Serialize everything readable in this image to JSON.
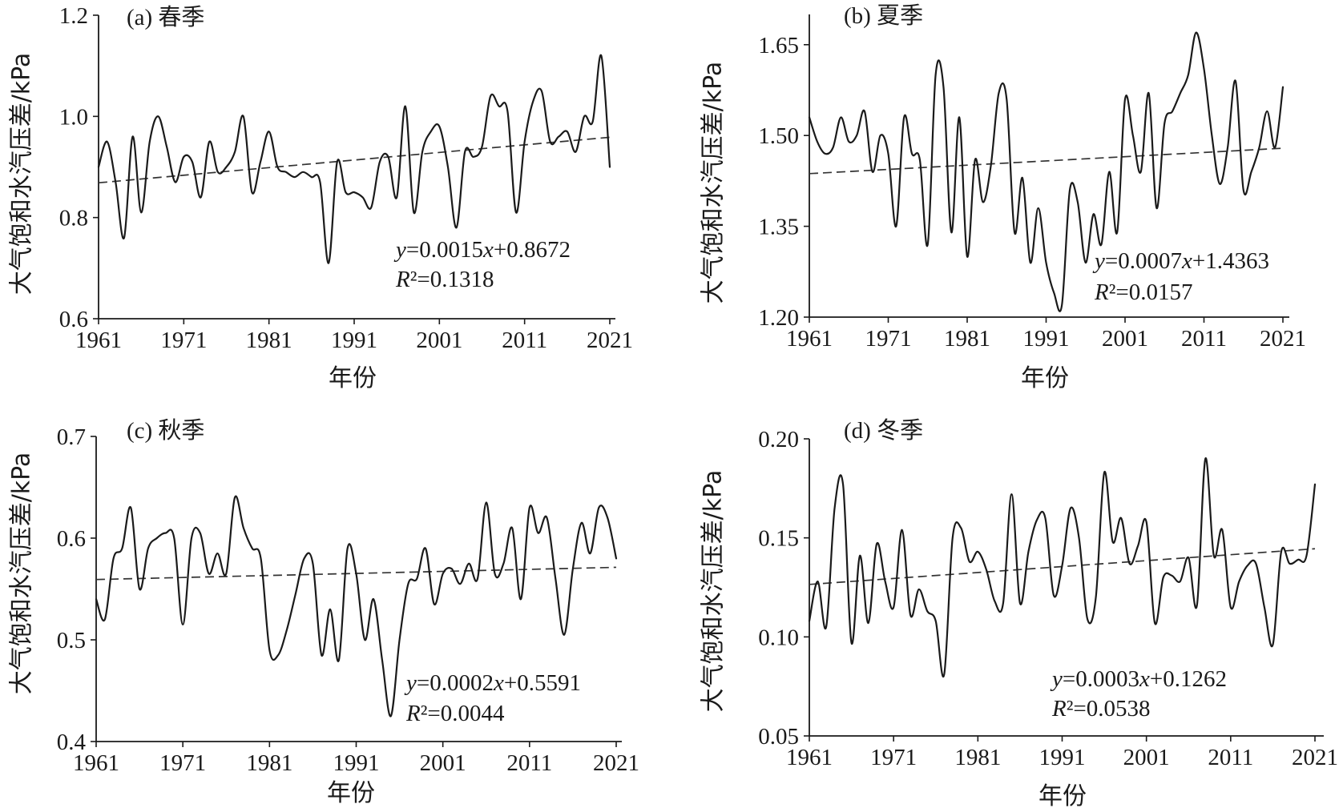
{
  "colors": {
    "background": "#ffffff",
    "line": "#1a1a1a",
    "trend": "#333333",
    "axis": "#1a1a1a",
    "text": "#1a1a1a"
  },
  "chart_data": [
    {
      "type": "line",
      "title": "(a) 春季",
      "xlabel": "年份",
      "ylabel": "大气饱和水汽压差/kPa",
      "xlim": [
        1961,
        2021
      ],
      "ylim": [
        0.6,
        1.2
      ],
      "xticks": [
        "1961",
        "1971",
        "1981",
        "1991",
        "2001",
        "2011",
        "2021"
      ],
      "yticks": [
        "0.6",
        "0.8",
        "1.0",
        "1.2"
      ],
      "x": [
        1961,
        1962,
        1963,
        1964,
        1965,
        1966,
        1967,
        1968,
        1969,
        1970,
        1971,
        1972,
        1973,
        1974,
        1975,
        1976,
        1977,
        1978,
        1979,
        1980,
        1981,
        1982,
        1983,
        1984,
        1985,
        1986,
        1987,
        1988,
        1989,
        1990,
        1991,
        1992,
        1993,
        1994,
        1995,
        1996,
        1997,
        1998,
        1999,
        2000,
        2001,
        2002,
        2003,
        2004,
        2005,
        2006,
        2007,
        2008,
        2009,
        2010,
        2011,
        2012,
        2013,
        2014,
        2015,
        2016,
        2017,
        2018,
        2019,
        2020,
        2021
      ],
      "y": [
        0.9,
        0.95,
        0.87,
        0.76,
        0.96,
        0.81,
        0.95,
        1.0,
        0.94,
        0.87,
        0.92,
        0.91,
        0.84,
        0.95,
        0.89,
        0.9,
        0.93,
        1.0,
        0.85,
        0.91,
        0.97,
        0.9,
        0.89,
        0.88,
        0.89,
        0.88,
        0.87,
        0.71,
        0.91,
        0.85,
        0.85,
        0.84,
        0.82,
        0.91,
        0.92,
        0.84,
        1.02,
        0.81,
        0.93,
        0.97,
        0.98,
        0.9,
        0.78,
        0.93,
        0.92,
        0.94,
        1.04,
        1.02,
        1.01,
        0.81,
        0.95,
        1.03,
        1.05,
        0.95,
        0.96,
        0.97,
        0.93,
        1.0,
        0.99,
        1.12,
        0.9
      ],
      "trend": {
        "slope": 0.0015,
        "intercept": 0.8672,
        "equation": "y=0.0015x+0.8672",
        "r2": "R²=0.1318"
      }
    },
    {
      "type": "line",
      "title": "(b) 夏季",
      "xlabel": "年份",
      "ylabel": "大气饱和水汽压差/kPa",
      "xlim": [
        1961,
        2021
      ],
      "ylim": [
        1.2,
        1.7
      ],
      "xticks": [
        "1961",
        "1971",
        "1981",
        "1991",
        "2001",
        "2011",
        "2021"
      ],
      "yticks": [
        "1.20",
        "1.35",
        "1.50",
        "1.65"
      ],
      "x": [
        1961,
        1962,
        1963,
        1964,
        1965,
        1966,
        1967,
        1968,
        1969,
        1970,
        1971,
        1972,
        1973,
        1974,
        1975,
        1976,
        1977,
        1978,
        1979,
        1980,
        1981,
        1982,
        1983,
        1984,
        1985,
        1986,
        1987,
        1988,
        1989,
        1990,
        1991,
        1992,
        1993,
        1994,
        1995,
        1996,
        1997,
        1998,
        1999,
        2000,
        2001,
        2002,
        2003,
        2004,
        2005,
        2006,
        2007,
        2008,
        2009,
        2010,
        2011,
        2012,
        2013,
        2014,
        2015,
        2016,
        2017,
        2018,
        2019,
        2020,
        2021
      ],
      "y": [
        1.53,
        1.49,
        1.47,
        1.48,
        1.53,
        1.49,
        1.5,
        1.54,
        1.44,
        1.5,
        1.47,
        1.35,
        1.53,
        1.47,
        1.46,
        1.32,
        1.6,
        1.58,
        1.34,
        1.53,
        1.3,
        1.46,
        1.39,
        1.45,
        1.57,
        1.56,
        1.34,
        1.43,
        1.29,
        1.38,
        1.29,
        1.24,
        1.22,
        1.41,
        1.39,
        1.29,
        1.37,
        1.32,
        1.44,
        1.34,
        1.56,
        1.5,
        1.44,
        1.57,
        1.38,
        1.52,
        1.54,
        1.57,
        1.6,
        1.67,
        1.61,
        1.5,
        1.42,
        1.48,
        1.59,
        1.41,
        1.44,
        1.48,
        1.54,
        1.48,
        1.58
      ],
      "trend": {
        "slope": 0.0007,
        "intercept": 1.4363,
        "equation": "y=0.0007x+1.4363",
        "r2": "R²=0.0157"
      }
    },
    {
      "type": "line",
      "title": "(c) 秋季",
      "xlabel": "年份",
      "ylabel": "大气饱和水汽压差/kPa",
      "xlim": [
        1961,
        2021
      ],
      "ylim": [
        0.4,
        0.7
      ],
      "xticks": [
        "1961",
        "1971",
        "1981",
        "1991",
        "2001",
        "2011",
        "2021"
      ],
      "yticks": [
        "0.4",
        "0.5",
        "0.6",
        "0.7"
      ],
      "x": [
        1961,
        1962,
        1963,
        1964,
        1965,
        1966,
        1967,
        1968,
        1969,
        1970,
        1971,
        1972,
        1973,
        1974,
        1975,
        1976,
        1977,
        1978,
        1979,
        1980,
        1981,
        1982,
        1983,
        1984,
        1985,
        1986,
        1987,
        1988,
        1989,
        1990,
        1991,
        1992,
        1993,
        1994,
        1995,
        1996,
        1997,
        1998,
        1999,
        2000,
        2001,
        2002,
        2003,
        2004,
        2005,
        2006,
        2007,
        2008,
        2009,
        2010,
        2011,
        2012,
        2013,
        2014,
        2015,
        2016,
        2017,
        2018,
        2019,
        2020,
        2021
      ],
      "y": [
        0.54,
        0.52,
        0.58,
        0.59,
        0.63,
        0.55,
        0.59,
        0.6,
        0.605,
        0.6,
        0.515,
        0.6,
        0.605,
        0.565,
        0.585,
        0.565,
        0.64,
        0.61,
        0.59,
        0.58,
        0.49,
        0.485,
        0.51,
        0.545,
        0.58,
        0.575,
        0.485,
        0.53,
        0.48,
        0.59,
        0.565,
        0.5,
        0.54,
        0.48,
        0.425,
        0.5,
        0.555,
        0.56,
        0.59,
        0.535,
        0.565,
        0.57,
        0.555,
        0.575,
        0.56,
        0.635,
        0.565,
        0.575,
        0.61,
        0.54,
        0.63,
        0.605,
        0.62,
        0.56,
        0.505,
        0.57,
        0.615,
        0.585,
        0.63,
        0.62,
        0.58
      ],
      "trend": {
        "slope": 0.0002,
        "intercept": 0.5591,
        "equation": "y=0.0002x+0.5591",
        "r2": "R²=0.0044"
      }
    },
    {
      "type": "line",
      "title": "(d) 冬季",
      "xlabel": "年份",
      "ylabel": "大气饱和水汽压差/kPa",
      "xlim": [
        1961,
        2021
      ],
      "ylim": [
        0.05,
        0.2
      ],
      "xticks": [
        "1961",
        "1971",
        "1981",
        "1991",
        "2001",
        "2011",
        "2021"
      ],
      "yticks": [
        "0.05",
        "0.10",
        "0.15",
        "0.20"
      ],
      "x": [
        1961,
        1962,
        1963,
        1964,
        1965,
        1966,
        1967,
        1968,
        1969,
        1970,
        1971,
        1972,
        1973,
        1974,
        1975,
        1976,
        1977,
        1978,
        1979,
        1980,
        1981,
        1982,
        1983,
        1984,
        1985,
        1986,
        1987,
        1988,
        1989,
        1990,
        1991,
        1992,
        1993,
        1994,
        1995,
        1996,
        1997,
        1998,
        1999,
        2000,
        2001,
        2002,
        2003,
        2004,
        2005,
        2006,
        2007,
        2008,
        2009,
        2010,
        2011,
        2012,
        2013,
        2014,
        2015,
        2016,
        2017,
        2018,
        2019,
        2020,
        2021
      ],
      "y": [
        0.108,
        0.128,
        0.105,
        0.165,
        0.177,
        0.097,
        0.141,
        0.107,
        0.147,
        0.128,
        0.115,
        0.154,
        0.111,
        0.124,
        0.113,
        0.108,
        0.081,
        0.15,
        0.155,
        0.138,
        0.143,
        0.134,
        0.118,
        0.117,
        0.172,
        0.117,
        0.143,
        0.159,
        0.16,
        0.121,
        0.136,
        0.165,
        0.15,
        0.109,
        0.12,
        0.183,
        0.148,
        0.16,
        0.137,
        0.146,
        0.158,
        0.107,
        0.13,
        0.131,
        0.128,
        0.14,
        0.116,
        0.19,
        0.141,
        0.154,
        0.115,
        0.128,
        0.136,
        0.137,
        0.115,
        0.096,
        0.143,
        0.137,
        0.139,
        0.141,
        0.177
      ],
      "trend": {
        "slope": 0.0003,
        "intercept": 0.1262,
        "equation": "y=0.0003x+0.1262",
        "r2": "R²=0.0538"
      }
    }
  ]
}
